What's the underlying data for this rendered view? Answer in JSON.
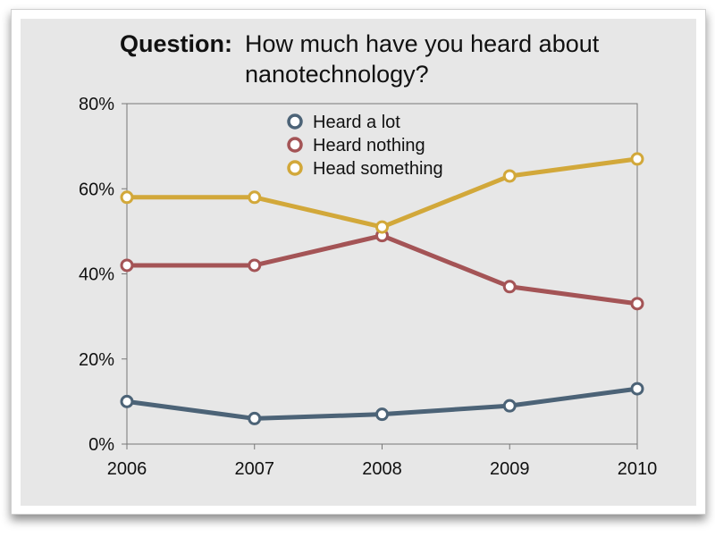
{
  "title": {
    "bold": "Question:",
    "text": "How much have you heard about nanotechnology?"
  },
  "colors": {
    "heard_a_lot": "#4c6377",
    "heard_nothing": "#a45456",
    "head_something": "#d2a83a",
    "background": "#e7e7e7"
  },
  "chart_data": {
    "type": "line",
    "x": [
      "2006",
      "2007",
      "2008",
      "2009",
      "2010"
    ],
    "ylim": [
      0,
      80
    ],
    "yticks": [
      "0%",
      "20%",
      "40%",
      "60%",
      "80%"
    ],
    "grid": false,
    "legend_position": "top-center",
    "series": [
      {
        "name": "Heard a lot",
        "values": [
          10,
          6,
          7,
          9,
          13
        ],
        "color": "#4c6377"
      },
      {
        "name": "Heard nothing",
        "values": [
          42,
          42,
          49,
          37,
          33
        ],
        "color": "#a45456"
      },
      {
        "name": "Head something",
        "values": [
          58,
          58,
          51,
          63,
          67
        ],
        "color": "#d2a83a"
      }
    ]
  }
}
